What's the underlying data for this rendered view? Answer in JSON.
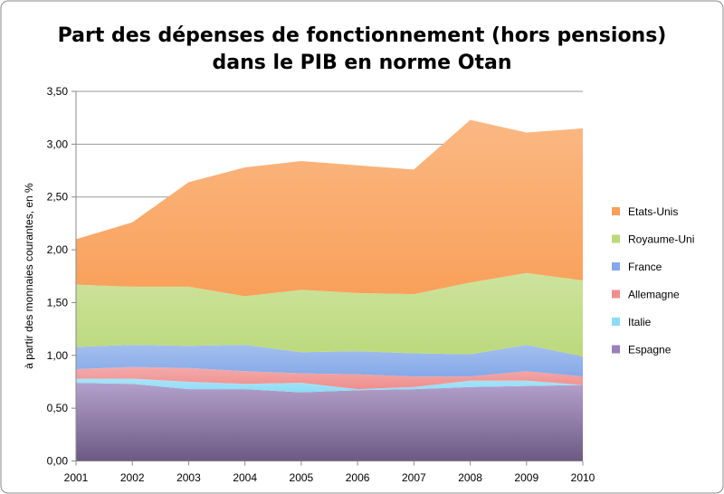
{
  "chart_data": {
    "type": "area",
    "stacked": true,
    "title_lines": [
      "Part des dépenses de fonctionnement (hors pensions)",
      "dans le PIB en norme Otan"
    ],
    "xlabel": "",
    "ylabel": "à partir des monnaies courantes, en %",
    "ylim": [
      0,
      3.5
    ],
    "yticks": [
      "0,00",
      "0,50",
      "1,00",
      "1,50",
      "2,00",
      "2,50",
      "3,00",
      "3,50"
    ],
    "ytick_values": [
      0,
      0.5,
      1,
      1.5,
      2,
      2.5,
      3,
      3.5
    ],
    "grid": "horizontal",
    "legend_position": "right",
    "categories": [
      "2001",
      "2002",
      "2003",
      "2004",
      "2005",
      "2006",
      "2007",
      "2008",
      "2009",
      "2010"
    ],
    "series": [
      {
        "name": "Espagne",
        "color": "#9b80bb",
        "values": [
          0.74,
          0.73,
          0.68,
          0.68,
          0.65,
          0.67,
          0.68,
          0.7,
          0.71,
          0.72
        ]
      },
      {
        "name": "Italie",
        "color": "#8cdcf5",
        "values": [
          0.04,
          0.05,
          0.07,
          0.05,
          0.09,
          0.01,
          0.02,
          0.06,
          0.05,
          0.0
        ]
      },
      {
        "name": "Allemagne",
        "color": "#ef8e8e",
        "values": [
          0.09,
          0.11,
          0.13,
          0.12,
          0.09,
          0.14,
          0.1,
          0.04,
          0.09,
          0.08
        ]
      },
      {
        "name": "France",
        "color": "#85a9e8",
        "values": [
          0.21,
          0.21,
          0.21,
          0.25,
          0.2,
          0.22,
          0.22,
          0.21,
          0.25,
          0.19
        ]
      },
      {
        "name": "Royaume-Uni",
        "color": "#bcd97c",
        "values": [
          0.59,
          0.55,
          0.56,
          0.46,
          0.59,
          0.55,
          0.56,
          0.68,
          0.68,
          0.72
        ]
      },
      {
        "name": "Etats-Unis",
        "color": "#f9a05a",
        "values": [
          0.43,
          0.61,
          0.99,
          1.22,
          1.22,
          1.21,
          1.18,
          1.54,
          1.33,
          1.44
        ]
      }
    ]
  }
}
